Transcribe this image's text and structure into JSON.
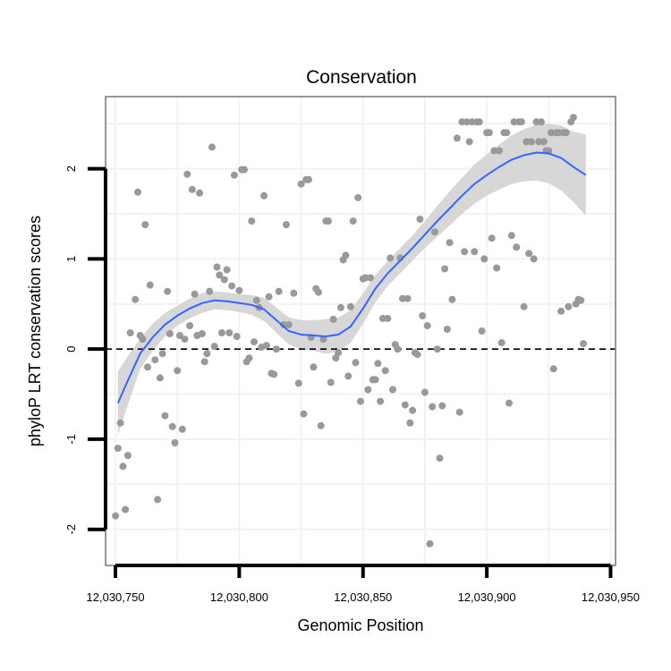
{
  "chart_data": {
    "type": "scatter",
    "title": "Conservation",
    "xlabel": "Genomic Position",
    "ylabel": "phyloP LRT conservation scores",
    "xlim": [
      12030746,
      12030952
    ],
    "ylim": [
      -2.4,
      2.8
    ],
    "x_ticks": [
      {
        "value": 12030750,
        "label": "12,030,750"
      },
      {
        "value": 12030800,
        "label": "12,030,800"
      },
      {
        "value": 12030850,
        "label": "12,030,850"
      },
      {
        "value": 12030900,
        "label": "12,030,900"
      },
      {
        "value": 12030950,
        "label": "12,030,950"
      }
    ],
    "y_ticks": [
      {
        "value": -2,
        "label": "-2"
      },
      {
        "value": -1,
        "label": "-1"
      },
      {
        "value": 0,
        "label": "0"
      },
      {
        "value": 1,
        "label": "1"
      },
      {
        "value": 2,
        "label": "2"
      }
    ],
    "grid": true,
    "reference_line": {
      "y": 0,
      "style": "dashed",
      "color": "#000000"
    },
    "colors": {
      "points": "#999999",
      "smooth_line": "#3366ff",
      "confidence_band": "#d3d3d3",
      "grid": "#f2f2f2",
      "panel_border": "#7f7f7f"
    },
    "points": [
      {
        "x": 12030750,
        "y": -1.85
      },
      {
        "x": 12030751,
        "y": -1.1
      },
      {
        "x": 12030752,
        "y": -0.82
      },
      {
        "x": 12030753,
        "y": -1.3
      },
      {
        "x": 12030754,
        "y": -1.78
      },
      {
        "x": 12030755,
        "y": -1.18
      },
      {
        "x": 12030756,
        "y": 0.18
      },
      {
        "x": 12030758,
        "y": 0.55
      },
      {
        "x": 12030759,
        "y": 1.74
      },
      {
        "x": 12030760,
        "y": 0.15
      },
      {
        "x": 12030761,
        "y": 0.11
      },
      {
        "x": 12030762,
        "y": 1.38
      },
      {
        "x": 12030763,
        "y": -0.2
      },
      {
        "x": 12030764,
        "y": 0.71
      },
      {
        "x": 12030766,
        "y": -0.12
      },
      {
        "x": 12030767,
        "y": -1.67
      },
      {
        "x": 12030768,
        "y": -0.32
      },
      {
        "x": 12030769,
        "y": -0.05
      },
      {
        "x": 12030770,
        "y": -0.74
      },
      {
        "x": 12030771,
        "y": 0.64
      },
      {
        "x": 12030772,
        "y": 0.17
      },
      {
        "x": 12030773,
        "y": -0.86
      },
      {
        "x": 12030774,
        "y": -1.04
      },
      {
        "x": 12030775,
        "y": -0.24
      },
      {
        "x": 12030776,
        "y": 0.15
      },
      {
        "x": 12030777,
        "y": -0.89
      },
      {
        "x": 12030778,
        "y": 0.11
      },
      {
        "x": 12030779,
        "y": 1.94
      },
      {
        "x": 12030780,
        "y": 0.26
      },
      {
        "x": 12030781,
        "y": 1.77
      },
      {
        "x": 12030782,
        "y": 0.61
      },
      {
        "x": 12030783,
        "y": 0.15
      },
      {
        "x": 12030784,
        "y": 1.73
      },
      {
        "x": 12030785,
        "y": 0.17
      },
      {
        "x": 12030786,
        "y": -0.14
      },
      {
        "x": 12030787,
        "y": -0.05
      },
      {
        "x": 12030788,
        "y": 0.64
      },
      {
        "x": 12030789,
        "y": 2.24
      },
      {
        "x": 12030790,
        "y": 0.03
      },
      {
        "x": 12030791,
        "y": 0.91
      },
      {
        "x": 12030792,
        "y": 0.82
      },
      {
        "x": 12030793,
        "y": 0.18
      },
      {
        "x": 12030794,
        "y": 0.77
      },
      {
        "x": 12030795,
        "y": 0.88
      },
      {
        "x": 12030796,
        "y": 0.18
      },
      {
        "x": 12030797,
        "y": 0.7
      },
      {
        "x": 12030798,
        "y": 1.93
      },
      {
        "x": 12030799,
        "y": 0.14
      },
      {
        "x": 12030800,
        "y": 0.65
      },
      {
        "x": 12030801,
        "y": 1.99
      },
      {
        "x": 12030802,
        "y": 1.99
      },
      {
        "x": 12030803,
        "y": -0.14
      },
      {
        "x": 12030804,
        "y": -0.1
      },
      {
        "x": 12030805,
        "y": 1.42
      },
      {
        "x": 12030806,
        "y": 0.08
      },
      {
        "x": 12030807,
        "y": 0.54
      },
      {
        "x": 12030808,
        "y": 0.46
      },
      {
        "x": 12030809,
        "y": 0.02
      },
      {
        "x": 12030810,
        "y": 1.7
      },
      {
        "x": 12030811,
        "y": 0.04
      },
      {
        "x": 12030812,
        "y": 0.58
      },
      {
        "x": 12030813,
        "y": -0.27
      },
      {
        "x": 12030814,
        "y": -0.28
      },
      {
        "x": 12030815,
        "y": 0.0
      },
      {
        "x": 12030816,
        "y": 0.64
      },
      {
        "x": 12030818,
        "y": 0.27
      },
      {
        "x": 12030819,
        "y": 1.38
      },
      {
        "x": 12030820,
        "y": 0.27
      },
      {
        "x": 12030822,
        "y": 0.62
      },
      {
        "x": 12030824,
        "y": -0.38
      },
      {
        "x": 12030825,
        "y": 1.83
      },
      {
        "x": 12030826,
        "y": -0.72
      },
      {
        "x": 12030827,
        "y": 1.88
      },
      {
        "x": 12030828,
        "y": 1.88
      },
      {
        "x": 12030829,
        "y": 0.13
      },
      {
        "x": 12030830,
        "y": -0.2
      },
      {
        "x": 12030831,
        "y": 0.67
      },
      {
        "x": 12030832,
        "y": 0.63
      },
      {
        "x": 12030833,
        "y": -0.85
      },
      {
        "x": 12030834,
        "y": 0.11
      },
      {
        "x": 12030835,
        "y": 1.42
      },
      {
        "x": 12030836,
        "y": 1.42
      },
      {
        "x": 12030837,
        "y": -0.37
      },
      {
        "x": 12030838,
        "y": 0.33
      },
      {
        "x": 12030839,
        "y": -0.1
      },
      {
        "x": 12030840,
        "y": -0.04
      },
      {
        "x": 12030841,
        "y": 0.46
      },
      {
        "x": 12030842,
        "y": 0.99
      },
      {
        "x": 12030843,
        "y": 1.04
      },
      {
        "x": 12030844,
        "y": -0.3
      },
      {
        "x": 12030845,
        "y": 0.47
      },
      {
        "x": 12030846,
        "y": 1.42
      },
      {
        "x": 12030847,
        "y": -0.15
      },
      {
        "x": 12030848,
        "y": 1.68
      },
      {
        "x": 12030849,
        "y": -0.58
      },
      {
        "x": 12030850,
        "y": 0.78
      },
      {
        "x": 12030851,
        "y": 0.79
      },
      {
        "x": 12030852,
        "y": -0.45
      },
      {
        "x": 12030853,
        "y": 0.79
      },
      {
        "x": 12030854,
        "y": -0.34
      },
      {
        "x": 12030855,
        "y": -0.34
      },
      {
        "x": 12030856,
        "y": -0.16
      },
      {
        "x": 12030857,
        "y": -0.58
      },
      {
        "x": 12030858,
        "y": 0.34
      },
      {
        "x": 12030859,
        "y": -0.24
      },
      {
        "x": 12030860,
        "y": 0.34
      },
      {
        "x": 12030861,
        "y": 1.01
      },
      {
        "x": 12030862,
        "y": -0.45
      },
      {
        "x": 12030863,
        "y": 0.05
      },
      {
        "x": 12030864,
        "y": 0.0
      },
      {
        "x": 12030865,
        "y": 1.01
      },
      {
        "x": 12030866,
        "y": 0.56
      },
      {
        "x": 12030867,
        "y": -0.62
      },
      {
        "x": 12030868,
        "y": 0.56
      },
      {
        "x": 12030869,
        "y": -0.82
      },
      {
        "x": 12030870,
        "y": -0.68
      },
      {
        "x": 12030871,
        "y": -0.04
      },
      {
        "x": 12030872,
        "y": -0.06
      },
      {
        "x": 12030873,
        "y": 1.44
      },
      {
        "x": 12030874,
        "y": 0.37
      },
      {
        "x": 12030875,
        "y": -0.48
      },
      {
        "x": 12030876,
        "y": 0.26
      },
      {
        "x": 12030877,
        "y": -2.16
      },
      {
        "x": 12030878,
        "y": -0.64
      },
      {
        "x": 12030879,
        "y": 1.3
      },
      {
        "x": 12030880,
        "y": 0.0
      },
      {
        "x": 12030881,
        "y": -1.21
      },
      {
        "x": 12030882,
        "y": -0.63
      },
      {
        "x": 12030883,
        "y": 0.89
      },
      {
        "x": 12030884,
        "y": 0.22
      },
      {
        "x": 12030885,
        "y": 1.18
      },
      {
        "x": 12030886,
        "y": 0.55
      },
      {
        "x": 12030888,
        "y": 2.34
      },
      {
        "x": 12030889,
        "y": -0.7
      },
      {
        "x": 12030890,
        "y": 2.52
      },
      {
        "x": 12030891,
        "y": 1.08
      },
      {
        "x": 12030892,
        "y": 2.52
      },
      {
        "x": 12030893,
        "y": 2.3
      },
      {
        "x": 12030894,
        "y": 2.52
      },
      {
        "x": 12030895,
        "y": 1.08
      },
      {
        "x": 12030896,
        "y": 2.52
      },
      {
        "x": 12030897,
        "y": 2.52
      },
      {
        "x": 12030898,
        "y": 0.2
      },
      {
        "x": 12030899,
        "y": 1.0
      },
      {
        "x": 12030900,
        "y": 2.4
      },
      {
        "x": 12030901,
        "y": 2.4
      },
      {
        "x": 12030902,
        "y": 1.23
      },
      {
        "x": 12030903,
        "y": 2.2
      },
      {
        "x": 12030904,
        "y": 0.9
      },
      {
        "x": 12030905,
        "y": 2.2
      },
      {
        "x": 12030906,
        "y": 0.07
      },
      {
        "x": 12030907,
        "y": 2.4
      },
      {
        "x": 12030908,
        "y": 2.4
      },
      {
        "x": 12030909,
        "y": -0.6
      },
      {
        "x": 12030910,
        "y": 1.26
      },
      {
        "x": 12030911,
        "y": 2.52
      },
      {
        "x": 12030912,
        "y": 1.13
      },
      {
        "x": 12030913,
        "y": 2.52
      },
      {
        "x": 12030914,
        "y": 2.52
      },
      {
        "x": 12030915,
        "y": 0.47
      },
      {
        "x": 12030916,
        "y": 2.3
      },
      {
        "x": 12030917,
        "y": 1.06
      },
      {
        "x": 12030918,
        "y": 2.3
      },
      {
        "x": 12030919,
        "y": 1.0
      },
      {
        "x": 12030920,
        "y": 2.52
      },
      {
        "x": 12030921,
        "y": 2.3
      },
      {
        "x": 12030922,
        "y": 2.52
      },
      {
        "x": 12030923,
        "y": 2.3
      },
      {
        "x": 12030924,
        "y": 2.2
      },
      {
        "x": 12030925,
        "y": 2.2
      },
      {
        "x": 12030926,
        "y": 2.4
      },
      {
        "x": 12030927,
        "y": -0.22
      },
      {
        "x": 12030928,
        "y": 2.4
      },
      {
        "x": 12030929,
        "y": 2.4
      },
      {
        "x": 12030930,
        "y": 0.42
      },
      {
        "x": 12030931,
        "y": 2.4
      },
      {
        "x": 12030932,
        "y": 2.4
      },
      {
        "x": 12030933,
        "y": 0.47
      },
      {
        "x": 12030934,
        "y": 2.52
      },
      {
        "x": 12030935,
        "y": 2.57
      },
      {
        "x": 12030936,
        "y": 0.5
      },
      {
        "x": 12030937,
        "y": 0.55
      },
      {
        "x": 12030938,
        "y": 0.54
      },
      {
        "x": 12030939,
        "y": 0.06
      }
    ],
    "smooth": {
      "x": [
        12030751,
        12030755,
        12030760,
        12030765,
        12030770,
        12030775,
        12030780,
        12030785,
        12030790,
        12030795,
        12030800,
        12030805,
        12030810,
        12030815,
        12030820,
        12030825,
        12030830,
        12030835,
        12030840,
        12030845,
        12030850,
        12030855,
        12030860,
        12030865,
        12030870,
        12030875,
        12030880,
        12030885,
        12030890,
        12030895,
        12030900,
        12030905,
        12030910,
        12030915,
        12030920,
        12030925,
        12030930,
        12030935,
        12030940
      ],
      "y": [
        -0.6,
        -0.35,
        -0.05,
        0.13,
        0.27,
        0.37,
        0.45,
        0.51,
        0.54,
        0.53,
        0.51,
        0.49,
        0.44,
        0.32,
        0.2,
        0.16,
        0.15,
        0.14,
        0.16,
        0.25,
        0.45,
        0.67,
        0.84,
        0.98,
        1.12,
        1.27,
        1.42,
        1.56,
        1.7,
        1.83,
        1.93,
        2.02,
        2.1,
        2.15,
        2.18,
        2.17,
        2.12,
        2.02,
        1.93
      ],
      "lower": [
        -0.95,
        -0.62,
        -0.22,
        -0.02,
        0.14,
        0.26,
        0.34,
        0.4,
        0.44,
        0.43,
        0.41,
        0.38,
        0.31,
        0.18,
        0.05,
        0.0,
        -0.02,
        -0.05,
        -0.03,
        0.07,
        0.28,
        0.52,
        0.7,
        0.84,
        0.98,
        1.12,
        1.25,
        1.37,
        1.5,
        1.61,
        1.7,
        1.77,
        1.83,
        1.86,
        1.87,
        1.84,
        1.76,
        1.63,
        1.48
      ],
      "upper": [
        -0.25,
        -0.08,
        0.12,
        0.28,
        0.4,
        0.48,
        0.56,
        0.62,
        0.64,
        0.63,
        0.61,
        0.6,
        0.57,
        0.46,
        0.35,
        0.32,
        0.32,
        0.33,
        0.35,
        0.43,
        0.62,
        0.82,
        0.98,
        1.12,
        1.26,
        1.42,
        1.59,
        1.75,
        1.9,
        2.05,
        2.16,
        2.27,
        2.37,
        2.44,
        2.49,
        2.5,
        2.48,
        2.41,
        2.38
      ]
    }
  }
}
